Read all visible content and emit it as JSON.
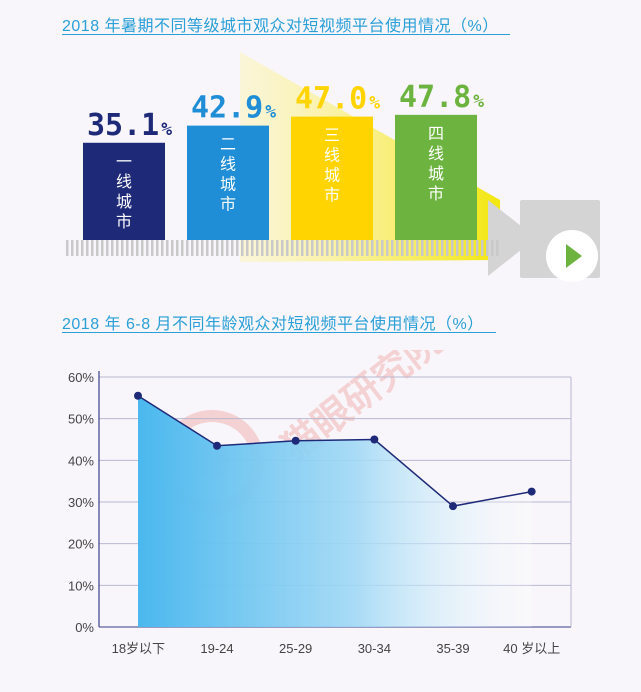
{
  "chart_data": [
    {
      "type": "bar",
      "title": "2018 年暑期不同等级城市观众对短视频平台使用情况（%）",
      "categories": [
        "一线城市",
        "二线城市",
        "三线城市",
        "四线城市"
      ],
      "values": [
        35.1,
        42.9,
        47.0,
        47.8
      ],
      "value_labels": [
        "35.1",
        "42.9",
        "47.0",
        "47.8"
      ],
      "unit": "%",
      "colors": [
        "#1e2a78",
        "#1f8ed6",
        "#ffd400",
        "#6db33f"
      ],
      "label_colors": [
        "#1e2a78",
        "#1f8ed6",
        "#ffd400",
        "#6db33f"
      ]
    },
    {
      "type": "area",
      "title": "2018 年 6-8 月不同年龄观众对短视频平台使用情况（%）",
      "categories": [
        "18岁以下",
        "19-24",
        "25-29",
        "30-34",
        "35-39",
        "40 岁以上"
      ],
      "values": [
        55.5,
        43.5,
        44.7,
        45.0,
        29.0,
        32.5
      ],
      "ylim": [
        0,
        60
      ],
      "yticks": [
        "0%",
        "10%",
        "20%",
        "30%",
        "40%",
        "50%",
        "60%"
      ],
      "grid": true,
      "line_color": "#1e2a78",
      "fill_color": "#4ab8ee"
    }
  ],
  "watermark": {
    "text": "猫眼研究院",
    "color": "#f2b3b3"
  }
}
